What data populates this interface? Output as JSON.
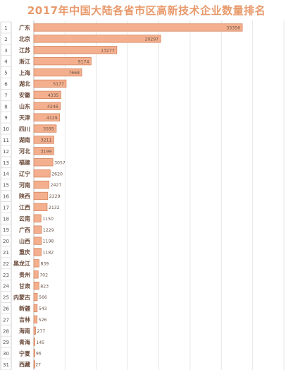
{
  "title": "2017年中国大陆各省市区高新技术企业数量排名",
  "colors": {
    "bar_fill": "#f4b08e",
    "bar_stroke": "#d3845e",
    "title": "#e89a6c",
    "grid": "#e6e6e6",
    "text": "#666666",
    "rank_text": "#555555"
  },
  "chart_data": {
    "type": "bar",
    "orientation": "horizontal",
    "title": "2017年中国大陆各省市区高新技术企业数量排名",
    "xlabel": "",
    "ylabel": "",
    "xlim": [
      0,
      40000
    ],
    "xticks": [
      0,
      5000,
      10000,
      15000,
      20000,
      25000,
      30000,
      35000,
      40000
    ],
    "grid": true,
    "ranks": [
      "1",
      "2",
      "3",
      "4",
      "5",
      "6",
      "7",
      "8",
      "9",
      "10",
      "11",
      "12",
      "13",
      "14",
      "15",
      "16",
      "17",
      "18",
      "19",
      "20",
      "21",
      "22",
      "23",
      "24",
      "25",
      "26",
      "27",
      "28",
      "29",
      "30",
      "31"
    ],
    "categories": [
      "广东",
      "北京",
      "江苏",
      "浙江",
      "上海",
      "湖北",
      "安徽",
      "山东",
      "天津",
      "四川",
      "湖南",
      "河北",
      "福建",
      "辽宁",
      "河南",
      "陕西",
      "江西",
      "云南",
      "广西",
      "山西",
      "重庆",
      "黑龙江",
      "贵州",
      "甘肃",
      "内蒙古",
      "新疆",
      "吉林",
      "海南",
      "青海",
      "宁夏",
      "西藏"
    ],
    "values": [
      33356,
      20297,
      13277,
      9174,
      7668,
      5177,
      4335,
      4246,
      4129,
      3595,
      3211,
      3199,
      3057,
      2620,
      2427,
      2229,
      2132,
      1150,
      1229,
      1198,
      1182,
      839,
      702,
      823,
      566,
      543,
      526,
      277,
      145,
      96,
      27
    ],
    "value_labels": [
      "33356",
      "20297",
      "13277",
      "9174",
      "7668",
      "5177",
      "4335",
      "4246",
      "4129",
      "3595",
      "3211",
      "3199",
      "3057",
      "2620",
      "2427",
      "2229",
      "2132",
      "1150",
      "1229",
      "1198",
      "1182",
      "839",
      "702",
      "823",
      "566",
      "543",
      "526",
      "277",
      "145",
      "96",
      "27"
    ]
  }
}
